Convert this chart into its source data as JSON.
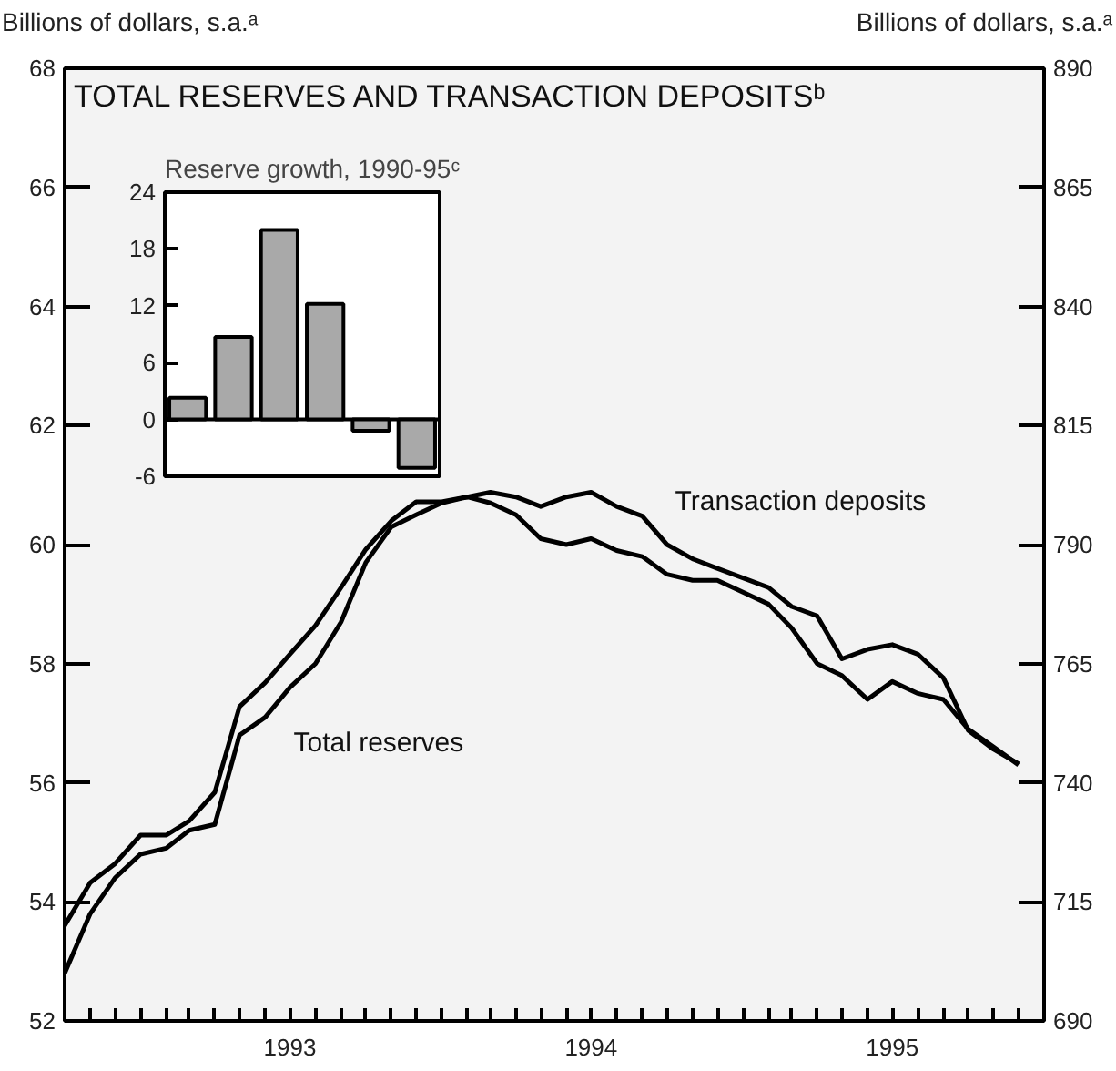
{
  "chart_data": [
    {
      "type": "line",
      "title": "TOTAL RESERVES AND TRANSACTION DEPOSITSᵇ",
      "ylabel": "Billions of dollars, s.a.ᵃ",
      "y2label": "Billions of dollars, s.a.ᵃ",
      "x": [
        "1992-10",
        "1992-11",
        "1992-12",
        "1993-01",
        "1993-02",
        "1993-03",
        "1993-04",
        "1993-05",
        "1993-06",
        "1993-07",
        "1993-08",
        "1993-09",
        "1993-10",
        "1993-11",
        "1993-12",
        "1994-01",
        "1994-02",
        "1994-03",
        "1994-04",
        "1994-05",
        "1994-06",
        "1994-07",
        "1994-08",
        "1994-09",
        "1994-10",
        "1994-11",
        "1994-12",
        "1995-01",
        "1995-02",
        "1995-03",
        "1995-04",
        "1995-05",
        "1995-06",
        "1995-07",
        "1995-08",
        "1995-09",
        "1995-10",
        "1995-11",
        "1995-12"
      ],
      "xlim": [
        "1992-10",
        "1996-01"
      ],
      "xticks": [
        {
          "value": "1992-11",
          "label": null
        },
        {
          "value": "1992-12",
          "label": null
        },
        {
          "value": "1993-01",
          "label": null
        },
        {
          "value": "1993-02",
          "label": null
        },
        {
          "value": "1993-03",
          "label": null
        },
        {
          "value": "1993-04",
          "label": null
        },
        {
          "value": "1993-05",
          "label": null
        },
        {
          "value": "1993-06",
          "label": null
        },
        {
          "value": "1993-07",
          "label": "1993"
        },
        {
          "value": "1993-08",
          "label": null
        },
        {
          "value": "1993-09",
          "label": null
        },
        {
          "value": "1993-10",
          "label": null
        },
        {
          "value": "1993-11",
          "label": null
        },
        {
          "value": "1993-12",
          "label": null
        },
        {
          "value": "1994-01",
          "label": null
        },
        {
          "value": "1994-02",
          "label": null
        },
        {
          "value": "1994-03",
          "label": null
        },
        {
          "value": "1994-04",
          "label": null
        },
        {
          "value": "1994-05",
          "label": null
        },
        {
          "value": "1994-06",
          "label": null
        },
        {
          "value": "1994-07",
          "label": "1994"
        },
        {
          "value": "1994-08",
          "label": null
        },
        {
          "value": "1994-09",
          "label": null
        },
        {
          "value": "1994-10",
          "label": null
        },
        {
          "value": "1994-11",
          "label": null
        },
        {
          "value": "1994-12",
          "label": null
        },
        {
          "value": "1995-01",
          "label": null
        },
        {
          "value": "1995-02",
          "label": null
        },
        {
          "value": "1995-03",
          "label": null
        },
        {
          "value": "1995-04",
          "label": null
        },
        {
          "value": "1995-05",
          "label": null
        },
        {
          "value": "1995-06",
          "label": null
        },
        {
          "value": "1995-07",
          "label": "1995"
        },
        {
          "value": "1995-08",
          "label": null
        },
        {
          "value": "1995-09",
          "label": null
        },
        {
          "value": "1995-10",
          "label": null
        },
        {
          "value": "1995-11",
          "label": null
        },
        {
          "value": "1995-12",
          "label": null
        }
      ],
      "ylim": [
        52,
        68
      ],
      "yticks": [
        52,
        54,
        56,
        58,
        60,
        62,
        64,
        66,
        68
      ],
      "y2lim": [
        690,
        890
      ],
      "y2ticks": [
        690,
        715,
        740,
        765,
        790,
        815,
        840,
        865,
        890
      ],
      "series": [
        {
          "name": "Total reserves",
          "color": "#000000",
          "values": [
            52.8,
            53.8,
            54.4,
            54.8,
            54.9,
            55.2,
            55.3,
            56.8,
            57.1,
            57.6,
            58.0,
            58.7,
            59.7,
            60.3,
            60.5,
            60.7,
            60.8,
            60.7,
            60.5,
            60.1,
            60.0,
            60.1,
            59.9,
            59.8,
            59.5,
            59.4,
            59.4,
            59.2,
            59.0,
            58.6,
            58.0,
            57.8,
            57.4,
            57.7,
            57.5,
            57.4,
            56.9,
            56.6,
            56.3
          ]
        },
        {
          "name": "Transaction deposits",
          "color": "#000000",
          "axis": "y2",
          "values": [
            710,
            719,
            723,
            729,
            729,
            732,
            738,
            756,
            761,
            767,
            773,
            781,
            789,
            795,
            799,
            799,
            800,
            801,
            800,
            798,
            800,
            801,
            798,
            796,
            790,
            787,
            785,
            783,
            781,
            777,
            775,
            766,
            768,
            769,
            767,
            762,
            751,
            747,
            744
          ]
        }
      ]
    },
    {
      "type": "bar",
      "title": "Reserve growth, 1990-95ᶜ",
      "categories": [
        null,
        null,
        null,
        null,
        null,
        null
      ],
      "values": [
        2.3,
        8.7,
        20.0,
        12.2,
        -1.2,
        -5.1
      ],
      "color": "#a9a9a9",
      "ylim": [
        -6,
        24
      ],
      "yticks": [
        -6,
        0,
        6,
        12,
        18,
        24
      ],
      "tick_labels": "y",
      "ref_lines": [
        {
          "axis": "y",
          "value": 0
        }
      ]
    }
  ]
}
